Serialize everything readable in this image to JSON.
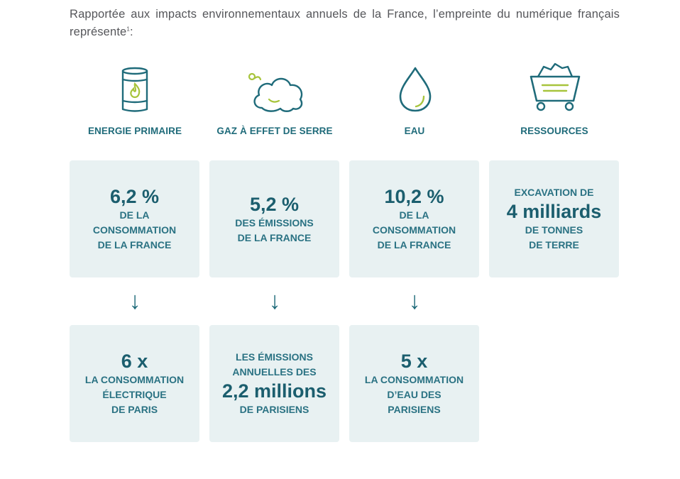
{
  "intro": {
    "text": "Rapportée aux impacts environnementaux annuels de la France, l’empreinte du numérique français représente",
    "footnote": "1",
    "tail": ":"
  },
  "categories": [
    {
      "label": "ENERGIE PRIMAIRE",
      "icon": "fuel-barrel-flame-icon"
    },
    {
      "label": "GAZ À EFFET DE SERRE",
      "icon": "smoke-cloud-icon"
    },
    {
      "label": "EAU",
      "icon": "water-drop-icon"
    },
    {
      "label": "RESSOURCES",
      "icon": "mining-cart-icon"
    }
  ],
  "cards_top": [
    {
      "big": "6,2 %",
      "small_after": "DE LA\nCONSOMMATION\nDE LA FRANCE"
    },
    {
      "big": "5,2 %",
      "small_after": "DES ÉMISSIONS\nDE LA FRANCE"
    },
    {
      "big": "10,2 %",
      "small_after": "DE LA\nCONSOMMATION\nDE LA FRANCE"
    },
    {
      "small_before": "EXCAVATION DE",
      "big": "4 milliards",
      "small_after": "DE TONNES\nDE TERRE"
    }
  ],
  "arrows": [
    "↓",
    "↓",
    "↓"
  ],
  "cards_bottom": [
    {
      "big": "6 x",
      "small_after": "LA CONSOMMATION\nÉLECTRIQUE\nDE PARIS"
    },
    {
      "small_before": "LES ÉMISSIONS\nANNUELLES DES",
      "big": "2,2 millions",
      "small_after": "DE PARISIENS"
    },
    {
      "big": "5 x",
      "small_after": "LA CONSOMMATION\nD’EAU DES\nPARISIENS"
    }
  ],
  "colors": {
    "teal": "#1f6b7a",
    "green_accent": "#a7c43c",
    "card_bg": "#e8f1f2",
    "text_gray": "#55565a"
  }
}
